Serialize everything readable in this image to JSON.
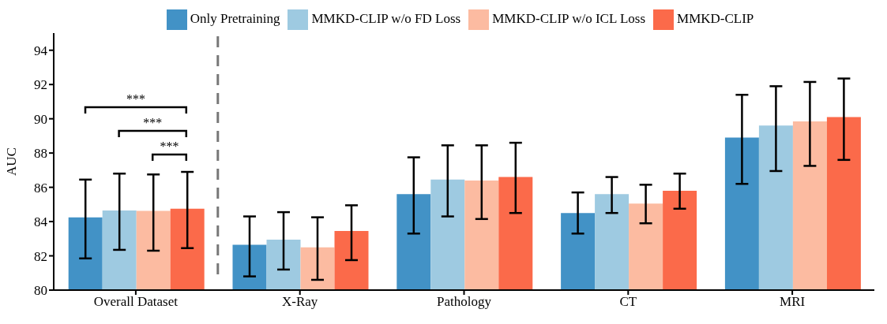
{
  "chart_data": {
    "type": "bar",
    "ylabel": "AUC",
    "categories": [
      "Overall Dataset",
      "X-Ray",
      "Pathology",
      "CT",
      "MRI"
    ],
    "series": [
      {
        "name": "Only Pretraining",
        "color": "#4292c6",
        "values": [
          84.25,
          82.65,
          85.6,
          84.5,
          88.9
        ],
        "errors": [
          [
            81.85,
            86.45
          ],
          [
            80.8,
            84.3
          ],
          [
            83.3,
            87.75
          ],
          [
            83.3,
            85.7
          ],
          [
            86.2,
            91.4
          ]
        ]
      },
      {
        "name": "MMKD-CLIP w/o FD Loss",
        "color": "#9ecae1",
        "values": [
          84.65,
          82.95,
          86.45,
          85.6,
          89.6
        ],
        "errors": [
          [
            82.35,
            86.8
          ],
          [
            81.2,
            84.55
          ],
          [
            84.3,
            88.45
          ],
          [
            84.5,
            86.6
          ],
          [
            86.95,
            91.9
          ]
        ]
      },
      {
        "name": "MMKD-CLIP w/o ICL Loss",
        "color": "#fcbba1",
        "values": [
          84.62,
          82.5,
          86.4,
          85.05,
          89.85
        ],
        "errors": [
          [
            82.3,
            86.75
          ],
          [
            80.6,
            84.25
          ],
          [
            84.15,
            88.45
          ],
          [
            83.9,
            86.15
          ],
          [
            87.25,
            92.15
          ]
        ]
      },
      {
        "name": "MMKD-CLIP",
        "color": "#fb6a4a",
        "values": [
          84.75,
          83.45,
          86.6,
          85.8,
          90.1
        ],
        "errors": [
          [
            82.45,
            86.9
          ],
          [
            81.75,
            84.95
          ],
          [
            84.5,
            88.6
          ],
          [
            84.75,
            86.8
          ],
          [
            87.6,
            92.35
          ]
        ]
      }
    ],
    "ylim": [
      80,
      95
    ],
    "yticks": [
      80,
      82,
      84,
      86,
      88,
      90,
      92,
      94
    ],
    "legend": "top",
    "annotations": [
      "***",
      "***",
      "***"
    ]
  }
}
